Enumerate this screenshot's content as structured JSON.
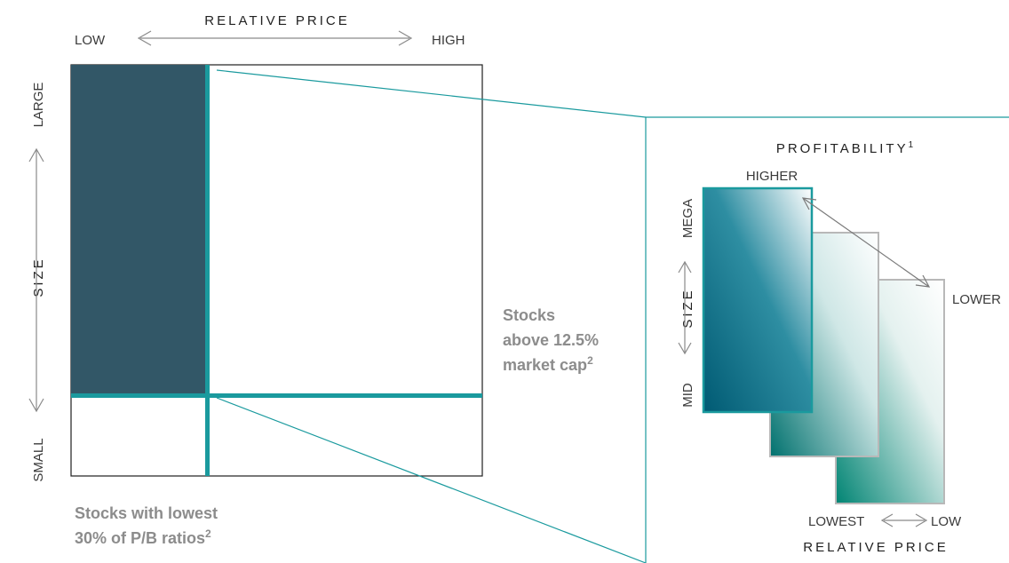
{
  "left_diagram": {
    "x_axis_title": "RELATIVE PRICE",
    "x_low": "LOW",
    "x_high": "HIGH",
    "y_axis_title": "SIZE",
    "y_top": "LARGE",
    "y_bottom": "SMALL",
    "note_size": {
      "line1": "Stocks",
      "line2": "above 12.5%",
      "line3": "market cap",
      "footnote": "2"
    },
    "note_value": {
      "line1": "Stocks with lowest",
      "line2": "30% of P/B ratios",
      "footnote": "2"
    }
  },
  "right_diagram": {
    "z_axis_title": "PROFITABILITY",
    "z_axis_footnote": "1",
    "z_high": "HIGHER",
    "z_low": "LOWER",
    "y_axis_title": "SIZE",
    "y_top": "MEGA",
    "y_bottom": "MID",
    "x_axis_title": "RELATIVE PRICE",
    "x_lowest": "LOWEST",
    "x_low": "LOW"
  },
  "colors": {
    "teal": "#1a9a9e",
    "dark_slate": "#325767",
    "panel_front": "#005a73",
    "panel_mid": "#00716e",
    "panel_back": "#008473",
    "arrow_gray": "#8a8a8a",
    "note_gray": "#8c8c8c"
  }
}
